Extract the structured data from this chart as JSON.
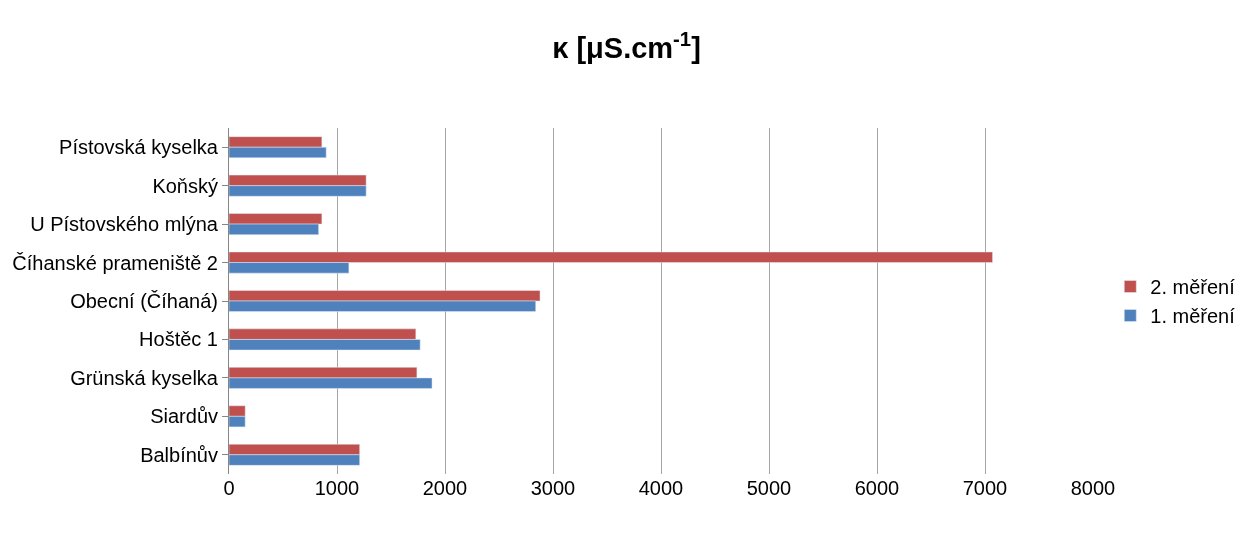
{
  "chart_data": {
    "type": "bar",
    "orientation": "horizontal",
    "title": "κ [μS.cm$^{-1}$]",
    "categories": [
      "Pístovská kyselka",
      "Koňský",
      "U Pístovského mlýna",
      "Číhanské prameniště 2",
      "Obecní (Číhaná)",
      "Hoštěc 1",
      "Grünská kyselka",
      "Siardův",
      "Balbínův"
    ],
    "series": [
      {
        "name": "2. měření",
        "color": "#c0504d",
        "values": [
          860,
          1270,
          860,
          7070,
          2880,
          1730,
          1740,
          150,
          1210
        ]
      },
      {
        "name": "1. měření",
        "color": "#4f81bd",
        "values": [
          900,
          1270,
          830,
          1110,
          2840,
          1770,
          1880,
          150,
          1210
        ]
      }
    ],
    "xlim": [
      0,
      8000
    ],
    "xticks": [
      0,
      1000,
      2000,
      3000,
      4000,
      5000,
      6000,
      7000,
      8000
    ],
    "grid": "x",
    "legend": "right"
  }
}
